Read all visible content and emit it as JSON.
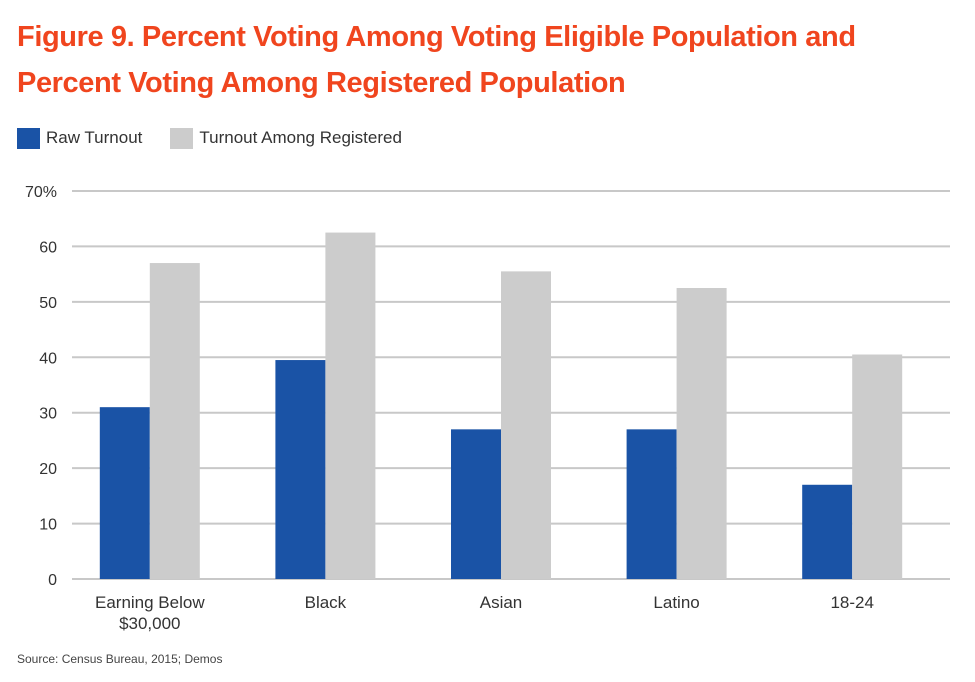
{
  "title_lines": [
    "Figure 9. Percent Voting Among Voting Eligible Population and",
    "Percent Voting Among Registered Population"
  ],
  "colors": {
    "title": "#f0451e",
    "raw_turnout": "#1a53a6",
    "turnout_registered": "#cccccc",
    "gridline": "#c8c8c8",
    "text": "#333333"
  },
  "source": "Source: Census Bureau, 2015; Demos",
  "chart_data": {
    "type": "bar",
    "title": "Figure 9. Percent Voting Among Voting Eligible Population and Percent Voting Among Registered Population",
    "xlabel": "",
    "ylabel": "",
    "ylim": [
      0,
      70
    ],
    "yticks": [
      0,
      10,
      20,
      30,
      40,
      50,
      60,
      70
    ],
    "ytick_labels": [
      "0",
      "10",
      "20",
      "30",
      "40",
      "50",
      "60",
      "70%"
    ],
    "grid": true,
    "legend_position": "top-left",
    "categories": [
      [
        "Earning Below",
        "$30,000"
      ],
      [
        "Black"
      ],
      [
        "Asian"
      ],
      [
        "Latino"
      ],
      [
        "18-24"
      ]
    ],
    "series": [
      {
        "name": "Raw Turnout",
        "color": "#1a53a6",
        "values": [
          31,
          39.5,
          27,
          27,
          17
        ]
      },
      {
        "name": "Turnout Among Registered",
        "color": "#cccccc",
        "values": [
          57,
          62.5,
          55.5,
          52.5,
          40.5
        ]
      }
    ]
  }
}
